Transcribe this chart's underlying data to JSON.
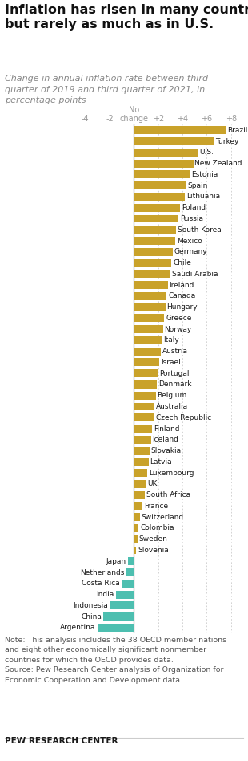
{
  "title_line1": "Inflation has risen in many countries,",
  "title_line2": "but rarely as much as in U.S.",
  "subtitle": "Change in annual inflation rate between third\nquarter of 2019 and third quarter of 2021, in\npercentage points",
  "countries": [
    "Brazil",
    "Turkey",
    "U.S.",
    "New Zealand",
    "Estonia",
    "Spain",
    "Lithuania",
    "Poland",
    "Russia",
    "South Korea",
    "Mexico",
    "Germany",
    "Chile",
    "Saudi Arabia",
    "Ireland",
    "Canada",
    "Hungary",
    "Greece",
    "Norway",
    "Italy",
    "Austria",
    "Israel",
    "Portugal",
    "Denmark",
    "Belgium",
    "Australia",
    "Czech Republic",
    "Finland",
    "Iceland",
    "Slovakia",
    "Latvia",
    "Luxembourg",
    "UK",
    "South Africa",
    "France",
    "Switzerland",
    "Colombia",
    "Sweden",
    "Slovenia",
    "Japan",
    "Netherlands",
    "Costa Rica",
    "India",
    "Indonesia",
    "China",
    "Argentina"
  ],
  "values": [
    7.6,
    6.6,
    5.3,
    4.9,
    4.6,
    4.3,
    4.2,
    3.8,
    3.7,
    3.5,
    3.4,
    3.2,
    3.1,
    3.0,
    2.8,
    2.7,
    2.6,
    2.5,
    2.4,
    2.3,
    2.2,
    2.1,
    2.0,
    1.9,
    1.8,
    1.7,
    1.7,
    1.5,
    1.4,
    1.3,
    1.2,
    1.1,
    1.0,
    0.9,
    0.7,
    0.5,
    0.4,
    0.3,
    0.2,
    -0.5,
    -0.6,
    -1.0,
    -1.5,
    -2.0,
    -2.5,
    -3.0
  ],
  "golden_color": "#C9A22A",
  "teal_color": "#4DBFB0",
  "xlim_left": -5.0,
  "xlim_right": 9.2,
  "xticks": [
    -4,
    -2,
    0,
    2,
    4,
    6,
    8
  ],
  "xtick_labels": [
    "-4",
    "-2",
    "No\nchange",
    "+2",
    "+4",
    "+6",
    "+8"
  ],
  "note": "Note: This analysis includes the 38 OECD member nations\nand eight other economically significant nonmember\ncountries for which the OECD provides data.\nSource: Pew Research Center analysis of Organization for\nEconomic Cooperation and Development data.",
  "source_label": "PEW RESEARCH CENTER",
  "bg_color": "#FFFFFF",
  "label_color": "#1a1a1a",
  "axis_color": "#999999",
  "note_color": "#555555",
  "gridline_color": "#CCCCCC",
  "zero_line_color": "#555555",
  "title_color": "#111111",
  "subtitle_color": "#888888"
}
